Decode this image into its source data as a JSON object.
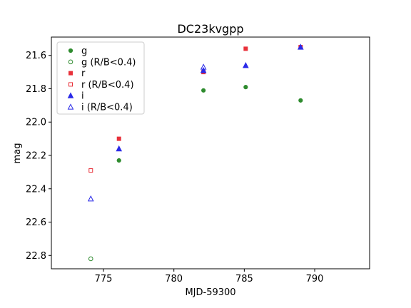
{
  "chart_data": {
    "type": "scatter",
    "title": "DC23kvgpp",
    "xlabel": "MJD-59300",
    "ylabel": "mag",
    "xlim": [
      771.3,
      793.9
    ],
    "ylim": [
      22.88,
      21.49
    ],
    "y_inverted": true,
    "grid": false,
    "legend_position": "top-left",
    "xticks": [
      "775",
      "780",
      "785",
      "790"
    ],
    "yticks": [
      "21.6",
      "21.8",
      "22.0",
      "22.2",
      "22.4",
      "22.6",
      "22.8"
    ],
    "series": [
      {
        "name": "g",
        "color": "#2e8b2e",
        "marker": "circle",
        "filled": true,
        "points": [
          [
            776.1,
            22.23
          ],
          [
            782.1,
            21.81
          ],
          [
            785.1,
            21.79
          ],
          [
            789.0,
            21.87
          ]
        ]
      },
      {
        "name": "g (R/B<0.4)",
        "color": "#2e8b2e",
        "marker": "circle",
        "filled": false,
        "points": [
          [
            774.1,
            22.82
          ]
        ]
      },
      {
        "name": "r",
        "color": "#e8313a",
        "marker": "square",
        "filled": true,
        "points": [
          [
            776.1,
            22.1
          ],
          [
            782.1,
            21.7
          ],
          [
            785.1,
            21.56
          ],
          [
            789.0,
            21.55
          ]
        ]
      },
      {
        "name": "r (R/B<0.4)",
        "color": "#e8313a",
        "marker": "square",
        "filled": false,
        "points": [
          [
            774.1,
            22.29
          ]
        ]
      },
      {
        "name": "i",
        "color": "#2a2ae8",
        "marker": "triangle",
        "filled": true,
        "points": [
          [
            776.1,
            22.16
          ],
          [
            782.1,
            21.69
          ],
          [
            785.1,
            21.66
          ],
          [
            789.0,
            21.55
          ]
        ]
      },
      {
        "name": "i (R/B<0.4)",
        "color": "#2a2ae8",
        "marker": "triangle",
        "filled": false,
        "points": [
          [
            774.1,
            22.46
          ],
          [
            782.1,
            21.67
          ]
        ]
      }
    ]
  }
}
